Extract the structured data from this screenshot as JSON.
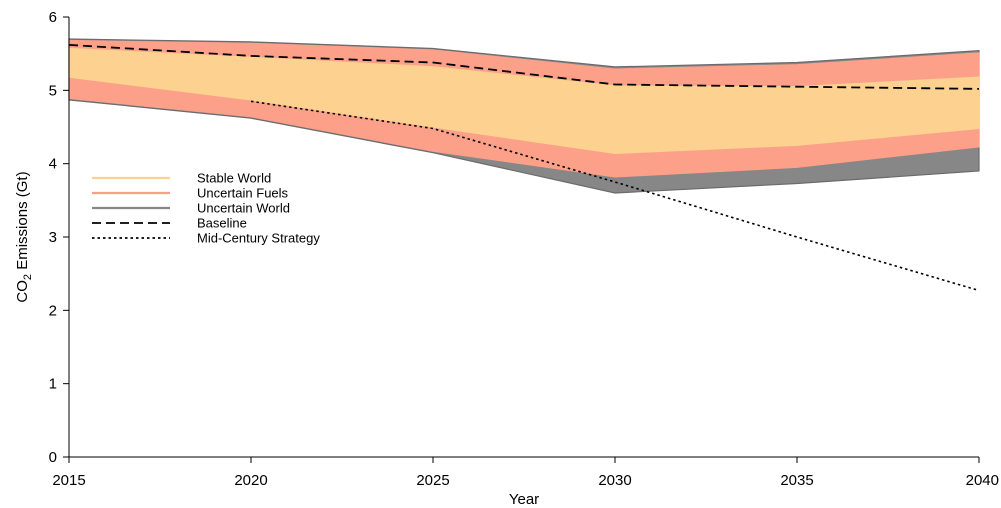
{
  "chart_data": {
    "type": "area",
    "title": "",
    "xlabel": "Year",
    "ylabel_main": "CO",
    "ylabel_sub": "2",
    "ylabel_rest": " Emissions (Gt)",
    "xlim": [
      2015,
      2040
    ],
    "ylim": [
      0,
      6
    ],
    "x": [
      2015,
      2020,
      2025,
      2030,
      2035,
      2040
    ],
    "x_ticks": [
      "2015",
      "2020",
      "2025",
      "2030",
      "2035",
      "2040"
    ],
    "y_ticks": [
      "0",
      "1",
      "2",
      "3",
      "4",
      "5",
      "6"
    ],
    "grid": false,
    "legend_position": "left",
    "bands": [
      {
        "name": "Uncertain World",
        "color": "#878787",
        "edge": "#6b6b6b",
        "upper": [
          5.7,
          5.66,
          5.57,
          5.32,
          5.38,
          5.54
        ],
        "lower": [
          4.87,
          4.62,
          4.15,
          3.6,
          3.73,
          3.9
        ]
      },
      {
        "name": "Uncertain Fuels",
        "color": "#fda08a",
        "edge": "#fda08a",
        "upper": [
          5.68,
          5.64,
          5.55,
          5.29,
          5.35,
          5.51
        ],
        "lower": [
          4.89,
          4.64,
          4.17,
          3.82,
          3.95,
          4.23
        ]
      },
      {
        "name": "Stable World",
        "color": "#fdd18f",
        "edge": "#fdd18f",
        "upper": [
          5.57,
          5.45,
          5.32,
          5.06,
          5.05,
          5.18
        ],
        "lower": [
          5.18,
          4.87,
          4.5,
          4.14,
          4.25,
          4.48
        ]
      }
    ],
    "series": [
      {
        "name": "Baseline",
        "style": "dashed",
        "color": "#000000",
        "x": [
          2015,
          2020,
          2025,
          2030,
          2035,
          2040
        ],
        "values": [
          5.62,
          5.47,
          5.38,
          5.08,
          5.05,
          5.02
        ]
      },
      {
        "name": "Mid-Century Strategy",
        "style": "dotted",
        "color": "#000000",
        "x": [
          2020,
          2025,
          2030,
          2035,
          2040
        ],
        "values": [
          4.85,
          4.48,
          3.75,
          3.0,
          2.27
        ]
      }
    ],
    "legend": [
      {
        "name": "Stable World",
        "kind": "line",
        "color": "#fdd18f",
        "style": "solid"
      },
      {
        "name": "Uncertain Fuels",
        "kind": "line",
        "color": "#fda08a",
        "style": "solid"
      },
      {
        "name": "Uncertain World",
        "kind": "line",
        "color": "#878787",
        "style": "solid"
      },
      {
        "name": "Baseline",
        "kind": "line",
        "color": "#000000",
        "style": "dashed"
      },
      {
        "name": "Mid-Century Strategy",
        "kind": "line",
        "color": "#000000",
        "style": "dotted"
      }
    ]
  }
}
